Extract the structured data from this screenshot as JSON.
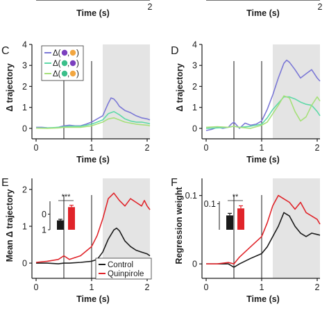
{
  "top_partial": {
    "xlabel": "Time (s)",
    "tick_label": "2"
  },
  "footer_text": "",
  "chart_data": [
    {
      "panel": "C",
      "type": "line",
      "xlabel": "Time (s)",
      "ylabel": "Δ trajectory",
      "xlim": [
        0,
        2.05
      ],
      "ylim": [
        -0.3,
        4
      ],
      "xticks": [
        "0",
        "1",
        "2"
      ],
      "yticks": [
        "0",
        "1",
        "2",
        "3",
        "4"
      ],
      "event_lines": [
        0.5,
        1.0
      ],
      "shaded_region": [
        1.2,
        2.05
      ],
      "legend_position": "top-left",
      "series": [
        {
          "name": "Δ(●,●)",
          "color": "#7b78d6",
          "dot_colors": [
            "#7b3fbf",
            "#f2a640"
          ],
          "x": [
            0,
            0.1,
            0.2,
            0.3,
            0.4,
            0.5,
            0.6,
            0.7,
            0.8,
            0.9,
            1.0,
            1.1,
            1.2,
            1.3,
            1.35,
            1.4,
            1.45,
            1.5,
            1.6,
            1.7,
            1.8,
            1.9,
            2.0,
            2.05
          ],
          "y": [
            0.05,
            0.05,
            0.03,
            0.02,
            0.05,
            0.12,
            0.15,
            0.12,
            0.12,
            0.2,
            0.3,
            0.45,
            0.6,
            1.2,
            1.45,
            1.4,
            1.25,
            1.05,
            0.85,
            0.75,
            0.6,
            0.5,
            0.45,
            0.4
          ]
        },
        {
          "name": "Δ(●,●)",
          "color": "#5fd9a8",
          "dot_colors": [
            "#3bbf8a",
            "#7b3fbf"
          ],
          "x": [
            0,
            0.2,
            0.4,
            0.5,
            0.6,
            0.8,
            1.0,
            1.1,
            1.2,
            1.3,
            1.4,
            1.5,
            1.6,
            1.7,
            1.8,
            1.9,
            2.0,
            2.05
          ],
          "y": [
            0.02,
            0.02,
            0.05,
            0.08,
            0.1,
            0.1,
            0.2,
            0.3,
            0.4,
            0.7,
            0.8,
            0.65,
            0.45,
            0.35,
            0.3,
            0.3,
            0.25,
            0.22
          ]
        },
        {
          "name": "Δ(●,●)",
          "color": "#a6e07a",
          "dot_colors": [
            "#3bbf8a",
            "#f2a640"
          ],
          "x": [
            0,
            0.2,
            0.4,
            0.5,
            0.6,
            0.8,
            1.0,
            1.2,
            1.3,
            1.4,
            1.5,
            1.6,
            1.8,
            2.0,
            2.05
          ],
          "y": [
            0.01,
            0.0,
            0.02,
            0.05,
            0.05,
            0.05,
            0.12,
            0.3,
            0.45,
            0.5,
            0.4,
            0.3,
            0.2,
            0.15,
            0.12
          ]
        }
      ]
    },
    {
      "panel": "D",
      "type": "line",
      "xlabel": "Time (s)",
      "ylabel": "Δ trajectory",
      "xlim": [
        0,
        2.05
      ],
      "ylim": [
        -0.3,
        4
      ],
      "xticks": [
        "0",
        "1",
        "2"
      ],
      "yticks": [
        "0",
        "1",
        "2",
        "3",
        "4"
      ],
      "event_lines": [
        0.5,
        1.0
      ],
      "shaded_region": [
        1.2,
        2.05
      ],
      "series": [
        {
          "name": "Δ(●,●)",
          "color": "#7b78d6",
          "x": [
            0,
            0.1,
            0.2,
            0.3,
            0.4,
            0.45,
            0.5,
            0.6,
            0.7,
            0.8,
            0.9,
            1.0,
            1.1,
            1.2,
            1.3,
            1.4,
            1.45,
            1.5,
            1.6,
            1.7,
            1.8,
            1.9,
            2.0,
            2.05
          ],
          "y": [
            -0.1,
            -0.05,
            0.05,
            0.0,
            0.05,
            0.2,
            0.3,
            0.0,
            0.25,
            0.15,
            0.2,
            0.35,
            0.9,
            1.6,
            2.4,
            3.1,
            3.25,
            3.15,
            2.8,
            2.4,
            2.6,
            2.8,
            2.4,
            2.25
          ]
        },
        {
          "name": "Δ(●,●)",
          "color": "#5fd9a8",
          "x": [
            0,
            0.2,
            0.4,
            0.5,
            0.6,
            0.8,
            1.0,
            1.1,
            1.2,
            1.3,
            1.4,
            1.5,
            1.6,
            1.7,
            1.8,
            1.9,
            2.0,
            2.05
          ],
          "y": [
            0.0,
            0.02,
            0.05,
            0.1,
            0.05,
            0.1,
            0.2,
            0.5,
            0.9,
            1.2,
            1.5,
            1.5,
            1.4,
            1.25,
            1.15,
            1.1,
            0.8,
            0.6
          ]
        },
        {
          "name": "Δ(●,●)",
          "color": "#a6e07a",
          "x": [
            0,
            0.2,
            0.4,
            0.5,
            0.6,
            0.8,
            1.0,
            1.1,
            1.2,
            1.3,
            1.4,
            1.5,
            1.6,
            1.7,
            1.8,
            1.9,
            2.0,
            2.05
          ],
          "y": [
            0.05,
            0.08,
            0.05,
            0.1,
            0.05,
            0.0,
            0.15,
            0.3,
            0.7,
            1.1,
            1.55,
            1.45,
            0.8,
            0.35,
            0.55,
            1.1,
            1.5,
            1.3
          ]
        }
      ]
    },
    {
      "panel": "E",
      "type": "line",
      "xlabel": "Time (s)",
      "ylabel": "Mean Δ trajectory",
      "xlim": [
        0,
        2.05
      ],
      "ylim": [
        -0.3,
        2.3
      ],
      "xticks": [
        "0",
        "1",
        "2"
      ],
      "yticks": [
        "0",
        "1",
        "2"
      ],
      "event_lines": [
        0.5,
        1.0
      ],
      "shaded_region": [
        1.2,
        2.05
      ],
      "legend_position": "bottom-right",
      "series": [
        {
          "name": "Control",
          "color": "#1a1a1a",
          "x": [
            0,
            0.2,
            0.4,
            0.5,
            0.6,
            0.8,
            1.0,
            1.1,
            1.2,
            1.3,
            1.4,
            1.45,
            1.5,
            1.6,
            1.7,
            1.8,
            1.9,
            2.0,
            2.05
          ],
          "y": [
            0.0,
            0.0,
            -0.02,
            0.0,
            0.0,
            0.02,
            0.05,
            0.1,
            0.3,
            0.65,
            0.9,
            0.95,
            0.88,
            0.6,
            0.45,
            0.35,
            0.3,
            0.25,
            0.2
          ]
        },
        {
          "name": "Quinpirole",
          "color": "#e0242a",
          "x": [
            0,
            0.2,
            0.4,
            0.5,
            0.6,
            0.8,
            1.0,
            1.1,
            1.2,
            1.3,
            1.4,
            1.5,
            1.6,
            1.7,
            1.8,
            1.9,
            1.95,
            2.0,
            2.05
          ],
          "y": [
            0.02,
            0.05,
            0.1,
            0.2,
            0.1,
            0.2,
            0.45,
            0.75,
            1.2,
            1.75,
            1.9,
            1.7,
            1.55,
            1.75,
            1.65,
            1.55,
            1.7,
            1.55,
            1.45
          ]
        }
      ],
      "inset": {
        "type": "bar",
        "categories": [
          "Control",
          "Quinpirole"
        ],
        "values": [
          0.6,
          1.45
        ],
        "errors": [
          0.07,
          0.12
        ],
        "ylim": [
          0,
          2
        ],
        "yticks": [
          "0",
          "1"
        ],
        "colors": [
          "#1a1a1a",
          "#e0242a"
        ],
        "significance": "***"
      }
    },
    {
      "panel": "F",
      "type": "line",
      "xlabel": "Time (s)",
      "ylabel": "Regression weight",
      "xlim": [
        0,
        2.05
      ],
      "ylim": [
        -0.015,
        0.125
      ],
      "xticks": [
        "0",
        "1",
        "2"
      ],
      "yticks": [
        "0",
        "0.1"
      ],
      "event_lines": [
        0.5,
        1.0
      ],
      "shaded_region": [
        1.2,
        2.05
      ],
      "series": [
        {
          "name": "Control",
          "color": "#1a1a1a",
          "x": [
            0,
            0.2,
            0.4,
            0.5,
            0.6,
            0.8,
            1.0,
            1.1,
            1.2,
            1.3,
            1.4,
            1.5,
            1.6,
            1.7,
            1.8,
            1.9,
            2.0,
            2.05
          ],
          "y": [
            0.0,
            0.0,
            0.0,
            -0.005,
            0.0,
            0.008,
            0.015,
            0.025,
            0.04,
            0.055,
            0.075,
            0.07,
            0.055,
            0.045,
            0.04,
            0.045,
            0.043,
            0.042
          ]
        },
        {
          "name": "Quinpirole",
          "color": "#e0242a",
          "x": [
            0,
            0.2,
            0.4,
            0.5,
            0.6,
            0.8,
            1.0,
            1.1,
            1.2,
            1.3,
            1.4,
            1.5,
            1.6,
            1.7,
            1.8,
            1.9,
            2.0,
            2.05
          ],
          "y": [
            0.0,
            0.0,
            0.002,
            0.0,
            0.01,
            0.025,
            0.04,
            0.06,
            0.085,
            0.1,
            0.095,
            0.09,
            0.08,
            0.09,
            0.075,
            0.07,
            0.065,
            0.058
          ]
        }
      ],
      "inset": {
        "type": "bar",
        "categories": [
          "Control",
          "Quinpirole"
        ],
        "values": [
          0.55,
          0.82
        ],
        "errors": [
          0.08,
          0.1
        ],
        "ylim": [
          0,
          1.2
        ],
        "yticks": [
          "0.1"
        ],
        "colors": [
          "#1a1a1a",
          "#e0242a"
        ],
        "significance": "**"
      }
    }
  ]
}
